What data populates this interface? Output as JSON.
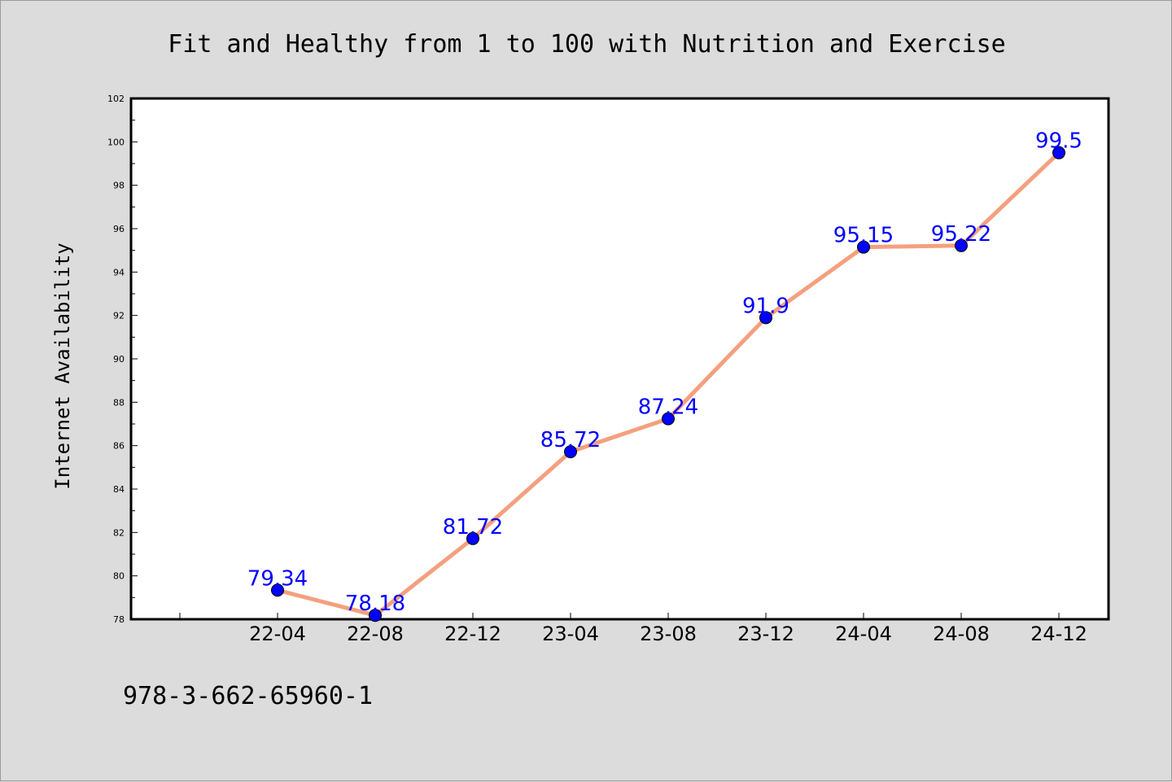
{
  "footer_code": "978-3-662-65960-1",
  "chart_data": {
    "type": "line",
    "title": "Fit and Healthy from 1 to 100 with Nutrition and Exercise",
    "xlabel": "",
    "ylabel": "Internet Availability",
    "categories": [
      "22-04",
      "22-08",
      "22-12",
      "23-04",
      "23-08",
      "23-12",
      "24-04",
      "24-08",
      "24-12"
    ],
    "series": [
      {
        "values": [
          79.34,
          78.18,
          81.72,
          85.72,
          87.24,
          91.9,
          95.15,
          95.22,
          99.5
        ],
        "labels": [
          "79.34",
          "78.18",
          "81.72",
          "85.72",
          "87.24",
          "91.9",
          "95.15",
          "95.22",
          "99.5"
        ]
      }
    ],
    "ylim": [
      78,
      102
    ],
    "yticks": [
      78,
      80,
      82,
      84,
      86,
      88,
      90,
      92,
      94,
      96,
      98,
      100,
      102
    ],
    "grid": false,
    "legend": "none",
    "colors": {
      "line": "#f4a07e",
      "marker": "#0000ff",
      "data_label": "#0000ff",
      "plot_bg": "#ffffff",
      "page_bg": "#dcdcdc"
    }
  }
}
